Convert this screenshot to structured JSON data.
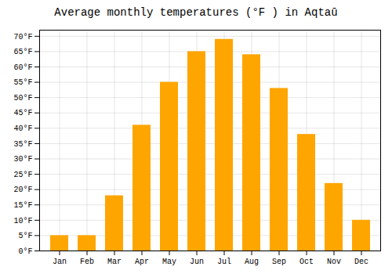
{
  "chart_data": {
    "type": "bar",
    "title": "Average monthly temperatures (°F ) in Aqtaū",
    "categories": [
      "Jan",
      "Feb",
      "Mar",
      "Apr",
      "May",
      "Jun",
      "Jul",
      "Aug",
      "Sep",
      "Oct",
      "Nov",
      "Dec"
    ],
    "values": [
      5,
      5,
      18,
      41,
      55,
      65,
      69,
      64,
      53,
      38,
      22,
      10
    ],
    "color": "#FFA500",
    "ylim": [
      0,
      72
    ],
    "yticks": [
      {
        "value": 0,
        "label": "0°F"
      },
      {
        "value": 5,
        "label": "5°F"
      },
      {
        "value": 10,
        "label": "10°F"
      },
      {
        "value": 15,
        "label": "15°F"
      },
      {
        "value": 20,
        "label": "20°F"
      },
      {
        "value": 25,
        "label": "25°F"
      },
      {
        "value": 30,
        "label": "30°F"
      },
      {
        "value": 35,
        "label": "35°F"
      },
      {
        "value": 40,
        "label": "40°F"
      },
      {
        "value": 45,
        "label": "45°F"
      },
      {
        "value": 50,
        "label": "50°F"
      },
      {
        "value": 55,
        "label": "55°F"
      },
      {
        "value": 60,
        "label": "60°F"
      },
      {
        "value": 65,
        "label": "65°F"
      },
      {
        "value": 70,
        "label": "70°F"
      }
    ],
    "grid": true
  }
}
